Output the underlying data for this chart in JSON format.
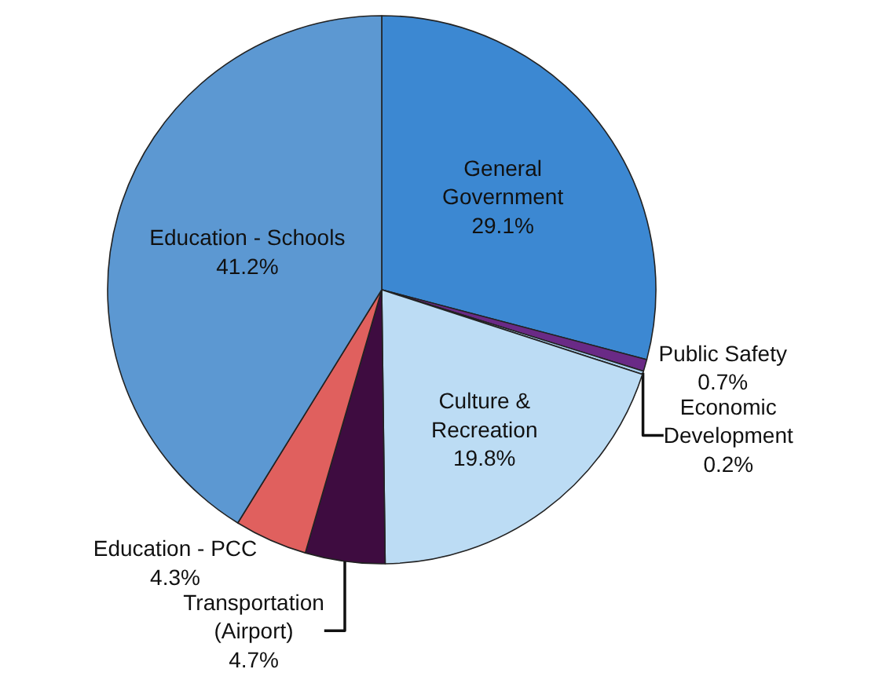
{
  "chart_data": {
    "type": "pie",
    "categories": [
      "General\nGovernment",
      "Public Safety",
      "Economic\nDevelopment",
      "Culture &\nRecreation",
      "Transportation\n(Airport)",
      "Education - PCC",
      "Education - Schools"
    ],
    "values": [
      29.1,
      0.7,
      0.2,
      19.8,
      4.7,
      4.3,
      41.2
    ],
    "value_labels": [
      "29.1%",
      "0.7%",
      "0.2%",
      "19.8%",
      "4.7%",
      "4.3%",
      "41.2%"
    ],
    "colors": [
      "#3c88d2",
      "#6a2a86",
      "#a8cfee",
      "#bcdcf4",
      "#3e0c40",
      "#e0605e",
      "#5c98d2"
    ],
    "legend": false
  }
}
